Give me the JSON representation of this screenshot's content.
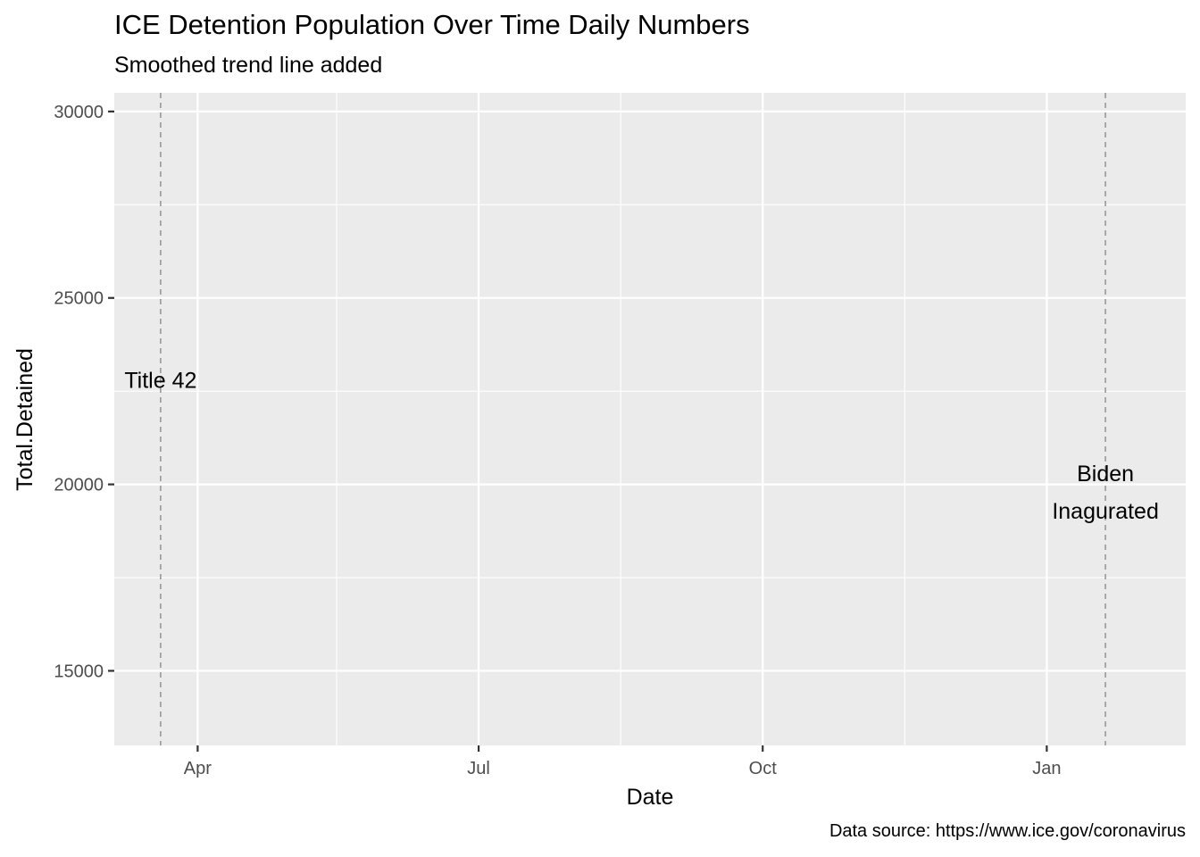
{
  "chart_data": {
    "type": "line",
    "title": "ICE Detention Population Over Time Daily Numbers",
    "subtitle": "Smoothed trend line added",
    "caption": "Data source: https://www.ice.gov/coronavirus",
    "xlabel": "Date",
    "ylabel": "Total.Detained",
    "xlim": [
      "2020-03-05",
      "2021-02-15"
    ],
    "ylim": [
      13000,
      30500
    ],
    "x_ticks": [
      {
        "date": "2020-04-01",
        "label": "Apr"
      },
      {
        "date": "2020-07-01",
        "label": "Jul"
      },
      {
        "date": "2020-10-01",
        "label": "Oct"
      },
      {
        "date": "2021-01-01",
        "label": "Jan"
      }
    ],
    "y_ticks": [
      15000,
      20000,
      25000,
      30000
    ],
    "series": [],
    "grid": true,
    "annotations": [
      {
        "name": "Title 42",
        "date": "2020-03-20",
        "y": 22800,
        "lines": [
          "Title 42"
        ]
      },
      {
        "name": "Biden Inagurated",
        "date": "2021-01-20",
        "y": 19800,
        "lines": [
          "Biden",
          "Inagurated"
        ]
      }
    ]
  }
}
